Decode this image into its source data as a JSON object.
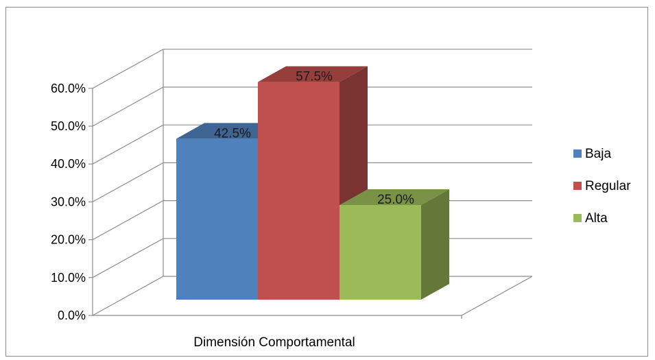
{
  "chart_data": {
    "type": "bar",
    "categories": [
      "Dimensión Comportamental"
    ],
    "series": [
      {
        "name": "Baja",
        "values": [
          42.5
        ],
        "label": "42.5%",
        "color": "#4f81bd"
      },
      {
        "name": "Regular",
        "values": [
          57.5
        ],
        "label": "57.5%",
        "color": "#c0504d"
      },
      {
        "name": "Alta",
        "values": [
          25.0
        ],
        "label": "25.0%",
        "color": "#9bbb59"
      }
    ],
    "ylim": [
      0,
      60
    ],
    "yticks": [
      "0.0%",
      "10.0%",
      "20.0%",
      "30.0%",
      "40.0%",
      "50.0%",
      "60.0%"
    ],
    "ytick_values": [
      0,
      10,
      20,
      30,
      40,
      50,
      60
    ],
    "style": "3d-clustered-column",
    "grid": true,
    "legend_position": "right"
  }
}
